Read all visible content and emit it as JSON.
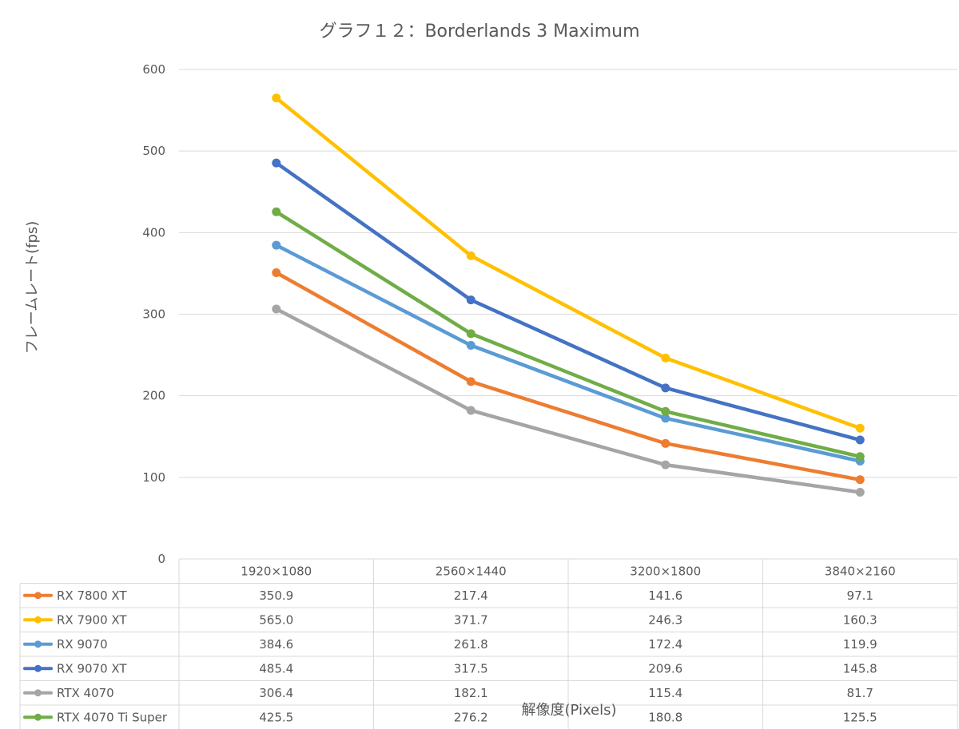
{
  "chart_data": {
    "type": "line",
    "title": "グラフ１２：Borderlands 3 Maximum",
    "xlabel": "解像度(Pixels)",
    "ylabel": "フレームレート(fps)",
    "ylim": [
      0,
      600
    ],
    "yticks": [
      "0",
      "100",
      "200",
      "300",
      "400",
      "500",
      "600"
    ],
    "grid": true,
    "legend_position": "data-table",
    "categories": [
      "1920×1080",
      "2560×1440",
      "3200×1800",
      "3840×2160"
    ],
    "series": [
      {
        "name": "RX 7800 XT",
        "color": "#ed7d31",
        "values": [
          350.9,
          217.4,
          141.6,
          97.1
        ],
        "labels": [
          "350.9",
          "217.4",
          "141.6",
          "97.1"
        ]
      },
      {
        "name": "RX 7900 XT",
        "color": "#ffc000",
        "values": [
          565.0,
          371.7,
          246.3,
          160.3
        ],
        "labels": [
          "565.0",
          "371.7",
          "246.3",
          "160.3"
        ]
      },
      {
        "name": "RX 9070",
        "color": "#5b9bd5",
        "values": [
          384.6,
          261.8,
          172.4,
          119.9
        ],
        "labels": [
          "384.6",
          "261.8",
          "172.4",
          "119.9"
        ]
      },
      {
        "name": "RX 9070 XT",
        "color": "#4472c4",
        "values": [
          485.4,
          317.5,
          209.6,
          145.8
        ],
        "labels": [
          "485.4",
          "317.5",
          "209.6",
          "145.8"
        ]
      },
      {
        "name": "RTX 4070",
        "color": "#a5a5a5",
        "values": [
          306.4,
          182.1,
          115.4,
          81.7
        ],
        "labels": [
          "306.4",
          "182.1",
          "115.4",
          "81.7"
        ]
      },
      {
        "name": "RTX 4070 Ti Super",
        "color": "#70ad47",
        "values": [
          425.5,
          276.2,
          180.8,
          125.5
        ],
        "labels": [
          "425.5",
          "276.2",
          "180.8",
          "125.5"
        ]
      }
    ]
  }
}
